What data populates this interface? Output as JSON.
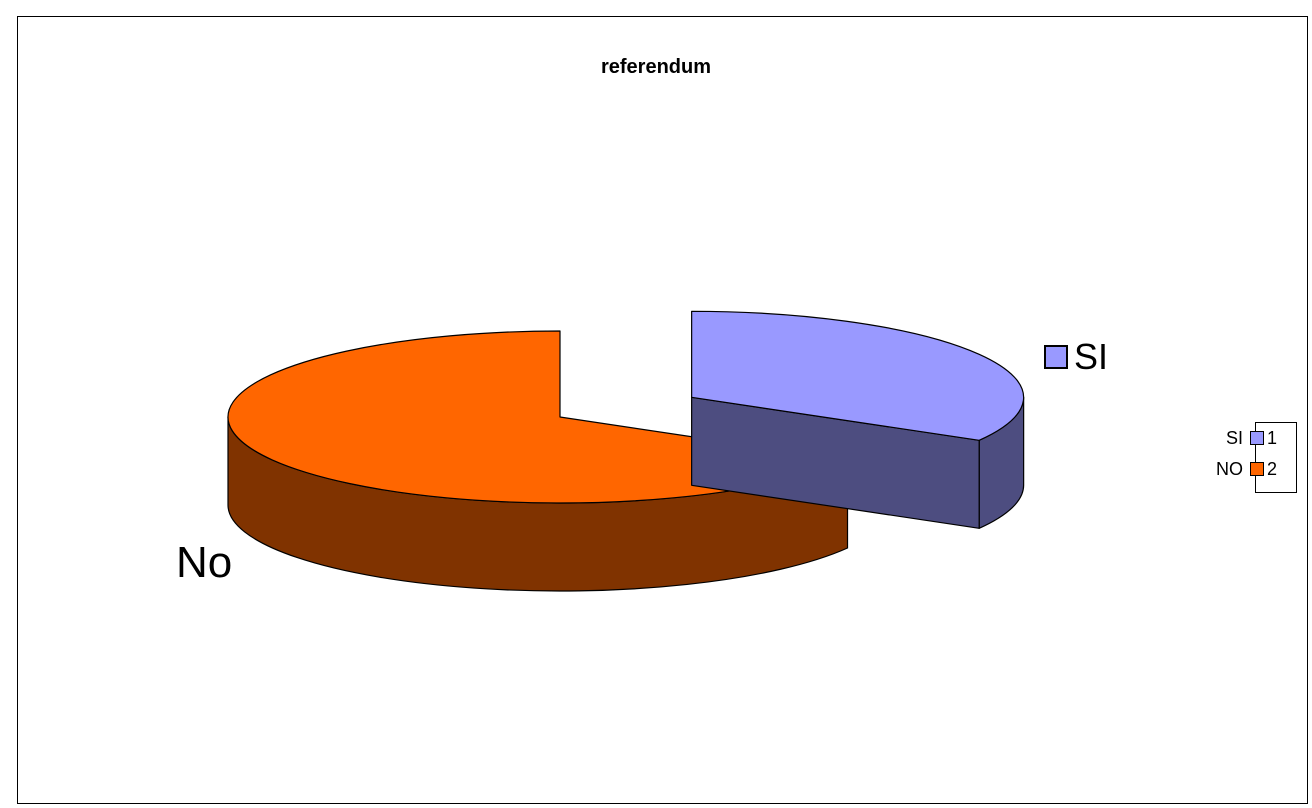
{
  "chart_data": {
    "type": "pie",
    "style": "3d-exploded",
    "title": "referendum",
    "categories": [
      "SI",
      "NO"
    ],
    "slice_labels": [
      "SI",
      "No"
    ],
    "values": [
      1,
      2
    ],
    "colors": {
      "SI": {
        "top": "#9999FF",
        "side": "#4D4D80"
      },
      "NO": {
        "top": "#FF6600",
        "side": "#803300"
      }
    },
    "legend": {
      "placement": "right",
      "entries": [
        {
          "category": "SI",
          "value_label": "1",
          "color": "#9999FF"
        },
        {
          "category": "NO",
          "value_label": "2",
          "color": "#FF6600"
        }
      ]
    }
  }
}
